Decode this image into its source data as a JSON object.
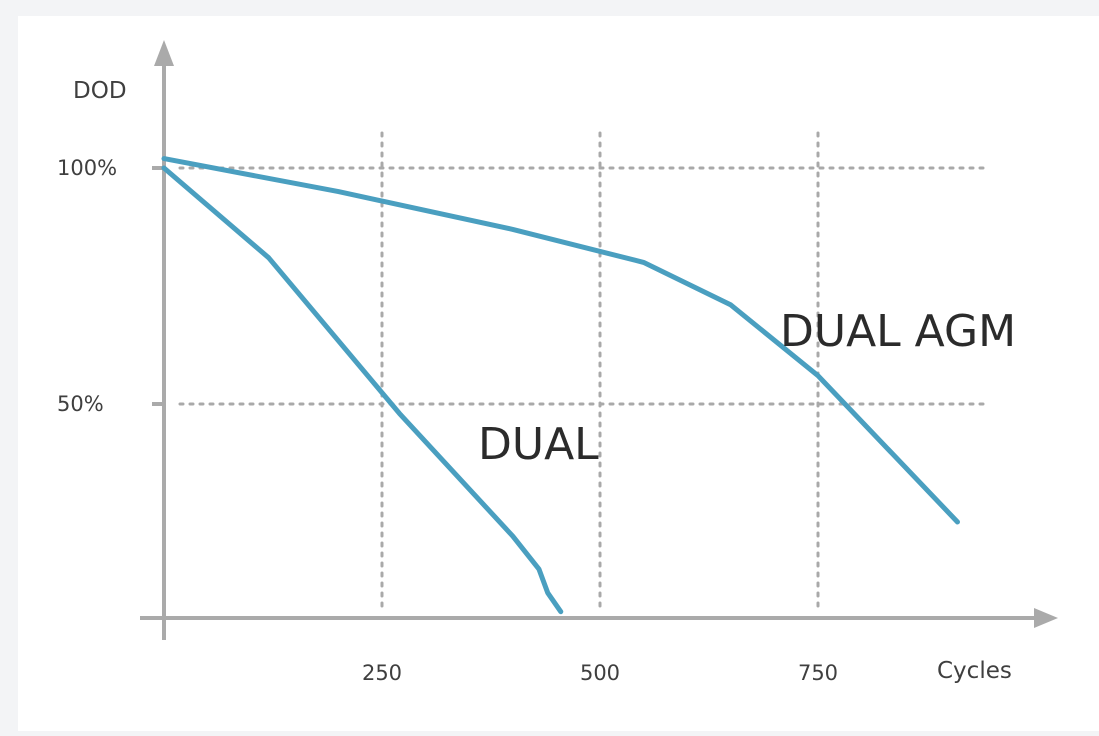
{
  "chart_data": {
    "type": "line",
    "title": "",
    "xlabel": "Cycles",
    "ylabel": "DOD",
    "xlim": [
      0,
      1000
    ],
    "ylim": [
      0,
      100
    ],
    "x_ticks": [
      {
        "value": 250,
        "label": "250"
      },
      {
        "value": 500,
        "label": "500"
      },
      {
        "value": 750,
        "label": "750"
      }
    ],
    "y_ticks": [
      {
        "value": 50,
        "label": "50%"
      },
      {
        "value": 100,
        "label": "100%"
      }
    ],
    "grid": true,
    "line_color": "#4a9fc0",
    "series": [
      {
        "name": "DUAL",
        "points": [
          [
            0,
            100
          ],
          [
            120,
            81
          ],
          [
            270,
            48
          ],
          [
            400,
            22
          ],
          [
            430,
            15
          ],
          [
            440,
            10
          ],
          [
            455,
            6
          ]
        ]
      },
      {
        "name": "DUAL AGM",
        "points": [
          [
            0,
            102
          ],
          [
            200,
            95
          ],
          [
            400,
            87
          ],
          [
            550,
            80
          ],
          [
            650,
            71
          ],
          [
            750,
            56
          ],
          [
            910,
            25
          ]
        ]
      }
    ]
  }
}
